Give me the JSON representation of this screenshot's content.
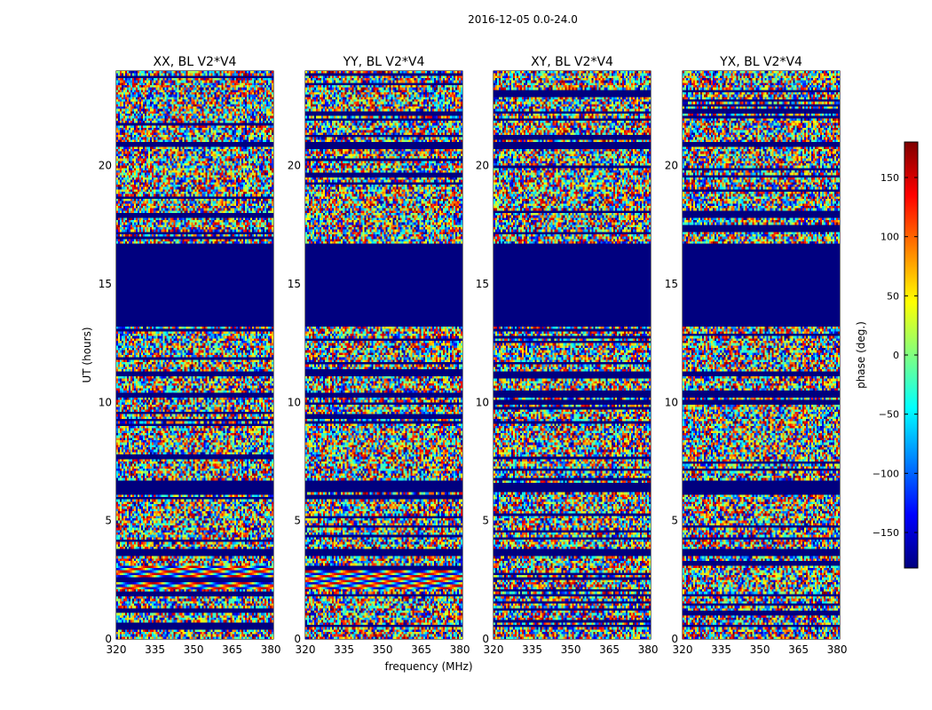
{
  "chart_data": {
    "type": "heatmap",
    "suptitle": "2016-12-05 0.0-24.0",
    "xlabel": "frequency (MHz)",
    "ylabel": "UT (hours)",
    "xlim": [
      320,
      381
    ],
    "ylim": [
      0,
      24
    ],
    "xticks": [
      320,
      335,
      350,
      365,
      380
    ],
    "yticks": [
      0,
      5,
      10,
      15,
      20
    ],
    "colorbar": {
      "label": "phase (deg.)",
      "range": [
        -180,
        180
      ],
      "ticks": [
        150,
        100,
        50,
        0,
        -50,
        -100,
        -150
      ],
      "colormap": "jet",
      "colormap_stops": [
        "#00007f",
        "#0000ff",
        "#0080ff",
        "#00ffff",
        "#80ff80",
        "#ffff00",
        "#ff8000",
        "#ff0000",
        "#7f0000"
      ]
    },
    "flagged_color": "#00007f",
    "flagged_intervals_hours": [
      [
        13.2,
        16.7
      ],
      [
        20.8,
        21.0
      ],
      [
        11.1,
        11.3
      ],
      [
        10.2,
        10.4
      ],
      [
        6.2,
        6.6
      ],
      [
        3.5,
        3.8
      ],
      [
        1.8,
        1.9
      ],
      [
        0.5,
        0.6
      ]
    ],
    "panels": [
      {
        "title": "XX, BL V2*V4",
        "polarization": "XX"
      },
      {
        "title": "YY, BL V2*V4",
        "polarization": "YY"
      },
      {
        "title": "XY, BL V2*V4",
        "polarization": "XY"
      },
      {
        "title": "YX, BL V2*V4",
        "polarization": "YX"
      }
    ]
  }
}
